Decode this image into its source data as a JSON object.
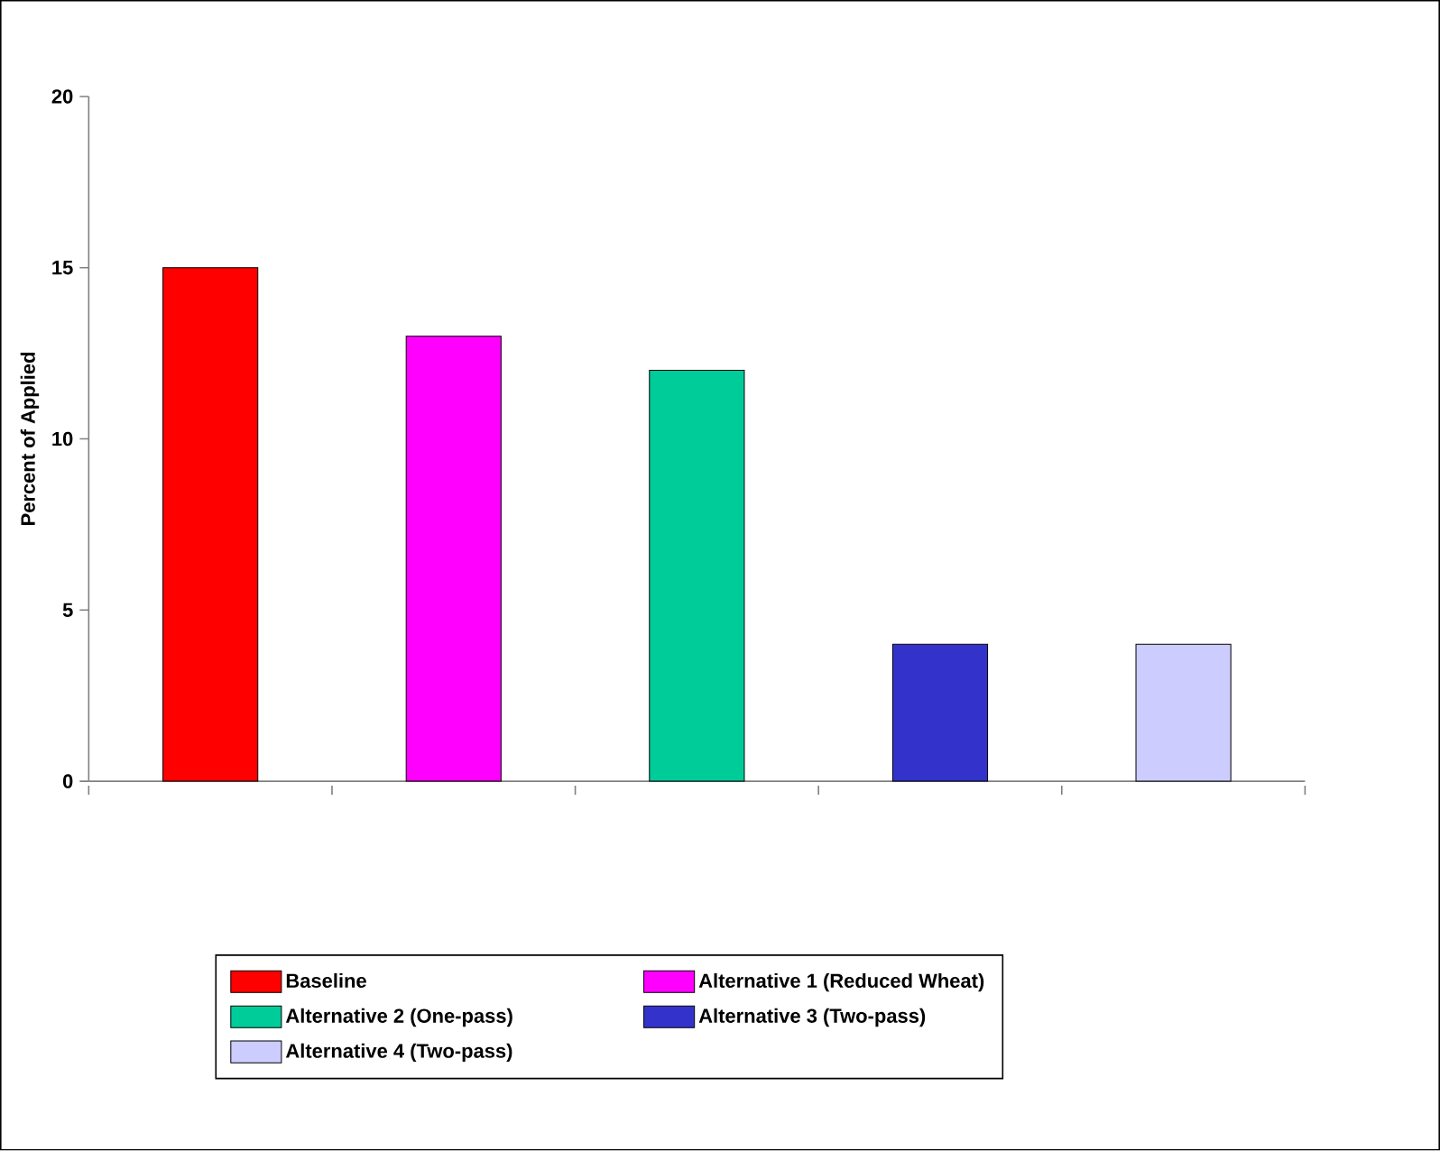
{
  "chart_data": {
    "type": "bar",
    "ylabel": "Percent of Applied",
    "categories": [
      null,
      null,
      null,
      null,
      null
    ],
    "series": [
      {
        "name": "Baseline",
        "color": "#ff0000",
        "values": [
          15,
          null,
          null,
          null,
          null
        ]
      },
      {
        "name": "Alternative 1 (Reduced Wheat)",
        "color": "#ff00ff",
        "values": [
          null,
          13,
          null,
          null,
          null
        ]
      },
      {
        "name": "Alternative 2 (One-pass)",
        "color": "#00cc99",
        "values": [
          null,
          null,
          12,
          null,
          null
        ]
      },
      {
        "name": "Alternative 3 (Two-pass)",
        "color": "#3333cc",
        "values": [
          null,
          null,
          null,
          4,
          null
        ]
      },
      {
        "name": "Alternative 4 (Two-pass)",
        "color": "#ccccff",
        "values": [
          null,
          null,
          null,
          null,
          4
        ]
      }
    ],
    "ylim": [
      0,
      20
    ],
    "yticks": [
      0,
      5,
      10,
      15,
      20
    ],
    "legend": "bottom"
  }
}
